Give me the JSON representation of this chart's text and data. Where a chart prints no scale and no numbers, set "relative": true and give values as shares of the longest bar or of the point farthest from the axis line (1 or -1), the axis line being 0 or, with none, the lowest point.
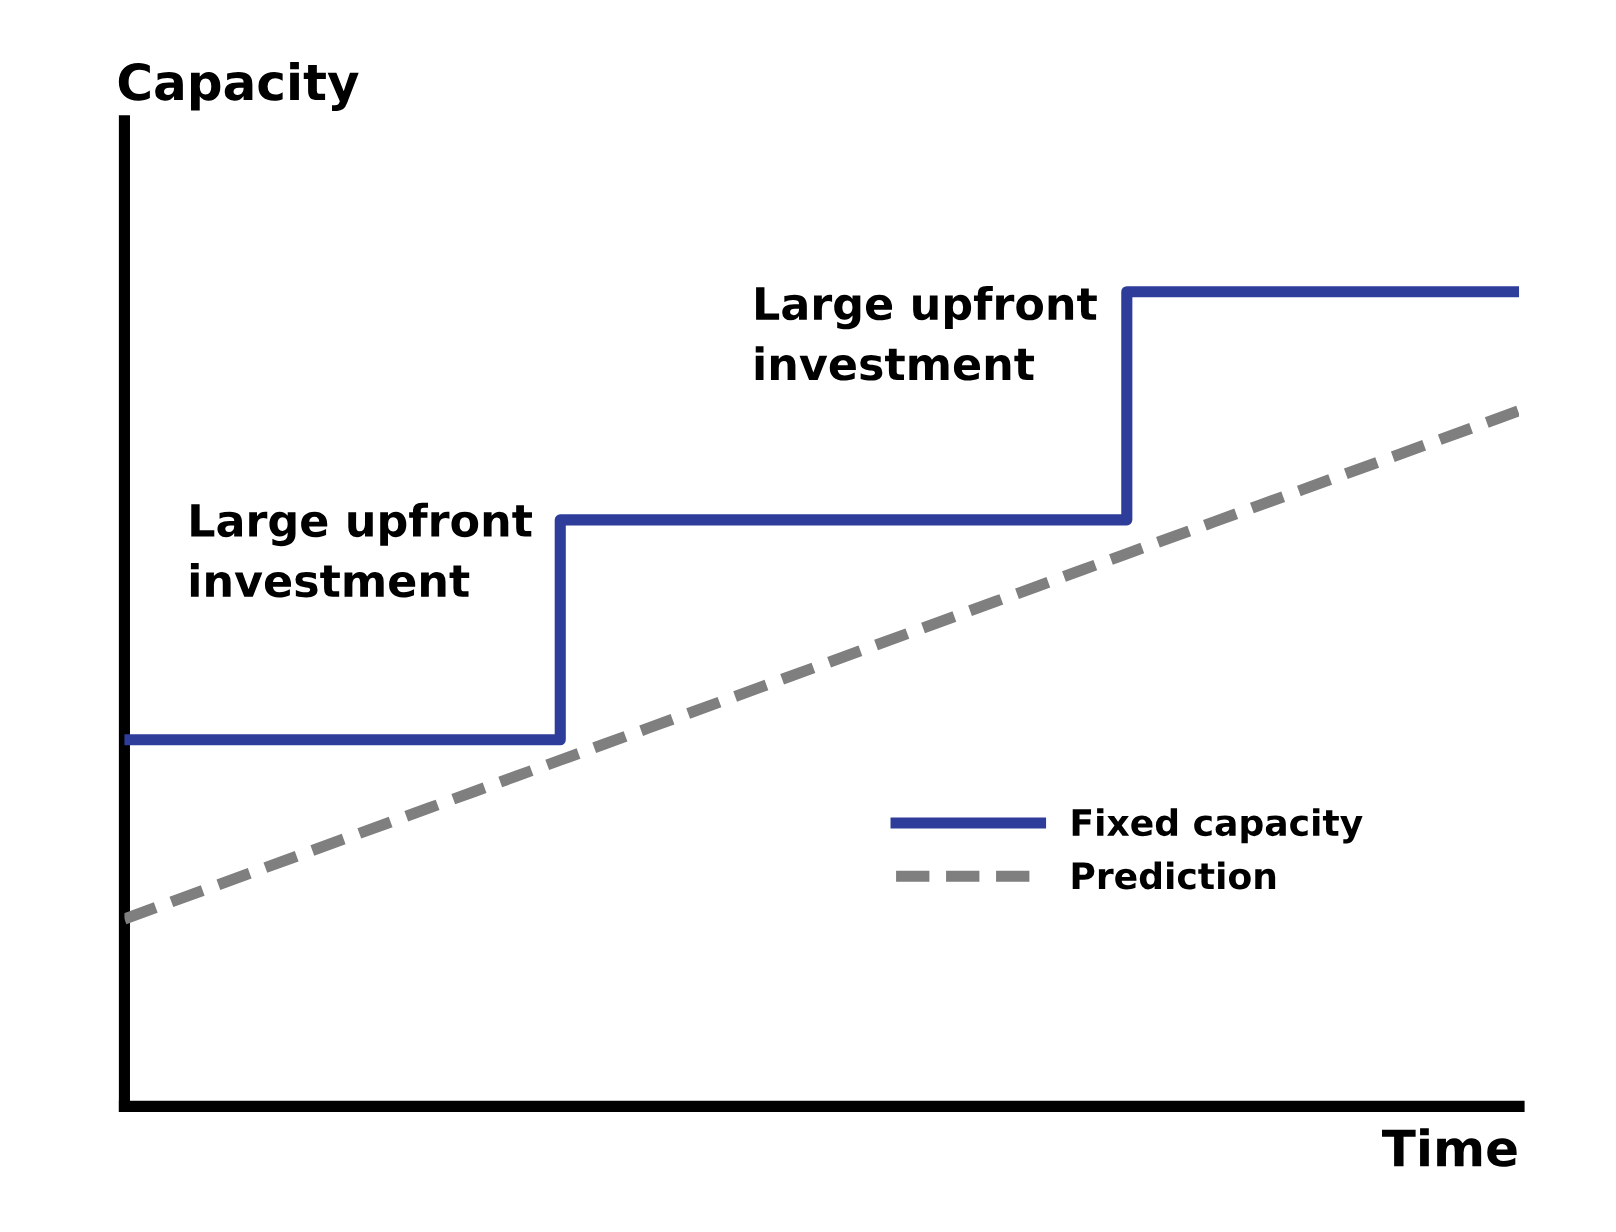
{
  "chart_data": {
    "type": "step",
    "relative": true,
    "xlabel": "Time",
    "ylabel": "Capacity",
    "categories": [
      null,
      null,
      null,
      null,
      null,
      null,
      null,
      null,
      null,
      null,
      null,
      null,
      null,
      null,
      null,
      null,
      null,
      null,
      null,
      null,
      null,
      null,
      null,
      null,
      null,
      null,
      null,
      null,
      null,
      null,
      null,
      null,
      null
    ],
    "series": [
      {
        "name": "Fixed capacity",
        "color": "#2e3d9a",
        "line_style": "solid",
        "values": [
          0.45,
          0.45,
          0.45,
          0.45,
          0.45,
          0.45,
          0.45,
          0.45,
          0.45,
          0.45,
          0.72,
          0.72,
          0.72,
          0.72,
          0.72,
          0.72,
          0.72,
          0.72,
          0.72,
          0.72,
          0.72,
          0.72,
          0.72,
          1,
          1,
          1,
          1,
          1,
          1,
          1,
          1,
          1,
          1
        ]
      },
      {
        "name": "Prediction",
        "type": "line",
        "color": "#7f7f7f",
        "line_style": "dashed",
        "values": [
          0.23,
          0.2495,
          0.269,
          0.2885,
          0.308,
          0.3275,
          0.347,
          0.3665,
          0.386,
          0.4055,
          0.425,
          0.4445,
          0.464,
          0.4835,
          0.503,
          0.5225,
          0.542,
          0.5615,
          0.581,
          0.6005,
          0.62,
          0.6395,
          0.659,
          0.6785,
          0.698,
          0.7175,
          0.737,
          0.7565,
          0.776,
          0.7955,
          0.815,
          0.8345,
          0.854
        ]
      }
    ],
    "annotations": [
      "Large upfront\ninvestment",
      "Large upfront\ninvestment"
    ],
    "legend": "bottom right",
    "grid": false
  }
}
